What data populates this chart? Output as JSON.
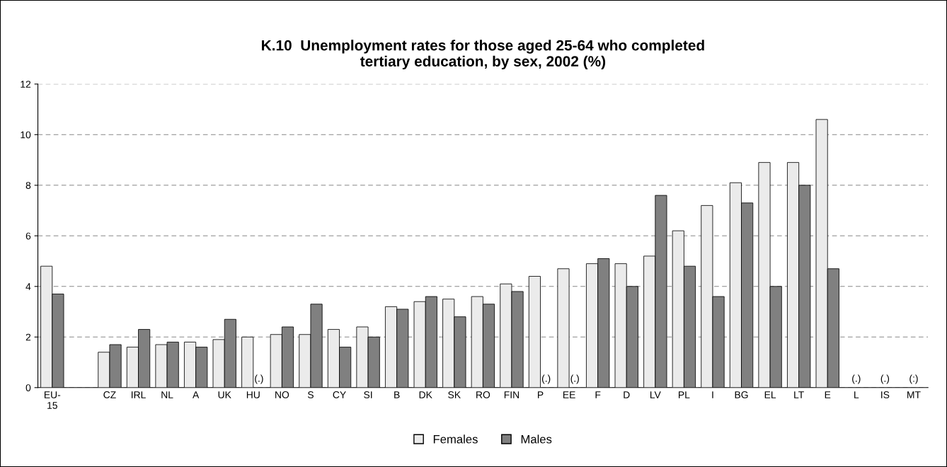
{
  "chart_data": {
    "type": "bar",
    "title": "K.10  Unemployment rates for those aged 25-64 who completed\ntertiary education, by sex, 2002 (%)",
    "categories": [
      "EU-\n15",
      null,
      "CZ",
      "IRL",
      "NL",
      "A",
      "UK",
      "HU",
      "NO",
      "S",
      "CY",
      "SI",
      "B",
      "DK",
      "SK",
      "RO",
      "FIN",
      "P",
      "EE",
      "F",
      "D",
      "LV",
      "PL",
      "I",
      "BG",
      "EL",
      "LT",
      "E",
      "L",
      "IS",
      "MT"
    ],
    "series": [
      {
        "name": "Females",
        "color": "#ebebeb",
        "values": [
          4.8,
          null,
          1.4,
          1.6,
          1.7,
          1.8,
          1.9,
          2.0,
          2.1,
          2.1,
          2.3,
          2.4,
          3.2,
          3.4,
          3.5,
          3.6,
          4.1,
          4.4,
          4.7,
          4.9,
          4.9,
          5.2,
          6.2,
          7.2,
          8.1,
          8.9,
          8.9,
          10.6,
          null,
          null,
          null
        ]
      },
      {
        "name": "Males",
        "color": "#808080",
        "values": [
          3.7,
          null,
          1.7,
          2.3,
          1.8,
          1.6,
          2.7,
          null,
          2.4,
          3.3,
          1.6,
          2.0,
          3.1,
          3.6,
          2.8,
          3.3,
          3.8,
          null,
          null,
          5.1,
          4.0,
          7.6,
          4.8,
          3.6,
          7.3,
          4.0,
          8.0,
          4.7,
          null,
          null,
          null
        ],
        "value_labels": [
          null,
          null,
          null,
          null,
          null,
          null,
          null,
          "(.)",
          null,
          null,
          null,
          null,
          null,
          null,
          null,
          null,
          null,
          "(.)",
          "(.)",
          null,
          null,
          null,
          null,
          null,
          null,
          null,
          null,
          null,
          "(.)",
          "(.)",
          "(:)"
        ]
      }
    ],
    "ylim": [
      0,
      12
    ],
    "yticks": [
      0,
      2,
      4,
      6,
      8,
      10,
      12
    ],
    "grid": "y",
    "legend": "bottom"
  }
}
